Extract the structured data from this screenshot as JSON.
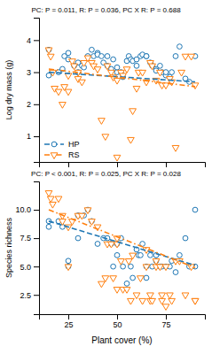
{
  "chart_data": [
    {
      "type": "scatter",
      "annotation": "PC: P = 0.011, R: P = 0.036, PC X R: P = 0.688",
      "ylabel": "Log dry mass (g)",
      "xlim": [
        10,
        95
      ],
      "xticks": [
        25,
        50,
        75
      ],
      "ylim": [
        0.2,
        4.7
      ],
      "yticks": [
        1,
        2,
        3,
        4
      ],
      "tick_labels": "y",
      "legend": "lower left",
      "series": [
        {
          "name": "HP",
          "marker": "circle",
          "line_style": "dashed",
          "x": [
            15,
            15,
            20,
            22,
            23,
            25,
            25,
            28,
            30,
            30,
            32,
            33,
            35,
            37,
            38,
            40,
            40,
            42,
            43,
            45,
            45,
            47,
            48,
            50,
            50,
            52,
            53,
            55,
            56,
            57,
            58,
            60,
            60,
            62,
            63,
            65,
            65,
            67,
            68,
            70,
            70,
            72,
            73,
            75,
            75,
            77,
            78,
            80,
            82,
            85,
            87,
            90
          ],
          "values": [
            3.7,
            2.9,
            3.0,
            3.1,
            3.5,
            3.4,
            3.6,
            3.2,
            3.0,
            3.3,
            3.2,
            3.15,
            3.5,
            3.7,
            3.5,
            3.6,
            3.55,
            3.5,
            3.3,
            3.2,
            3.5,
            3.1,
            3.4,
            3.0,
            3.15,
            3.0,
            2.85,
            3.35,
            3.5,
            3.4,
            3.35,
            3.4,
            3.2,
            3.5,
            3.55,
            3.5,
            3.5,
            3.3,
            3.2,
            3.1,
            3.05,
            3.2,
            3.0,
            2.9,
            3.0,
            2.85,
            3.0,
            3.5,
            3.8,
            2.8,
            2.7,
            3.5
          ],
          "fit_x": [
            15,
            90
          ],
          "fit_values": [
            3.0,
            2.7
          ]
        },
        {
          "name": "RS",
          "marker": "triangle-down",
          "line_style": "dash-dot",
          "x": [
            15,
            16,
            17,
            18,
            20,
            22,
            23,
            25,
            25,
            27,
            28,
            30,
            30,
            32,
            33,
            35,
            37,
            38,
            40,
            42,
            44,
            45,
            47,
            48,
            50,
            50,
            52,
            53,
            55,
            57,
            58,
            60,
            61,
            63,
            65,
            67,
            68,
            70,
            72,
            73,
            75,
            77,
            78,
            80,
            83,
            85,
            88,
            90
          ],
          "values": [
            3.7,
            3.5,
            3.0,
            2.5,
            2.4,
            2.0,
            2.55,
            2.9,
            2.4,
            3.35,
            3.2,
            3.0,
            2.8,
            2.7,
            3.3,
            3.45,
            3.3,
            3.2,
            3.1,
            1.5,
            1.0,
            3.2,
            3.0,
            2.85,
            0.35,
            2.75,
            3.0,
            2.9,
            3.1,
            0.9,
            1.8,
            2.5,
            3.0,
            3.0,
            2.7,
            3.3,
            3.2,
            2.75,
            3.0,
            2.6,
            2.6,
            2.8,
            2.7,
            0.65,
            3.0,
            3.5,
            3.5,
            2.6
          ],
          "fit_x": [
            15,
            90
          ],
          "fit_values": [
            3.1,
            2.55
          ]
        }
      ]
    },
    {
      "type": "scatter",
      "annotation": "PC: P < 0.001, R: P = 0.025, PC X R: P = 0.028",
      "xlabel": "Plant cover (%)",
      "ylabel": "Species richness",
      "xlim": [
        10,
        95
      ],
      "xticks": [
        25,
        50,
        75
      ],
      "ylim": [
        0.8,
        12.5
      ],
      "yticks": [
        2.5,
        {
          "value": 5,
          "label": "5.0"
        },
        7.5,
        {
          "value": 10,
          "label": "10.0"
        }
      ],
      "series": [
        {
          "marker": "circle",
          "line_style": "dashed",
          "x": [
            15,
            15,
            20,
            22,
            25,
            25,
            30,
            30,
            33,
            35,
            37,
            40,
            43,
            45,
            47,
            48,
            50,
            50,
            52,
            53,
            55,
            57,
            58,
            60,
            61,
            62,
            63,
            65,
            65,
            67,
            68,
            70,
            70,
            72,
            73,
            75,
            77,
            78,
            80,
            82,
            85,
            87,
            90,
            90
          ],
          "values": [
            9.0,
            8.5,
            9.0,
            8.5,
            5.0,
            5.5,
            9.5,
            7.5,
            9.5,
            10.0,
            9.0,
            7.0,
            7.5,
            7.5,
            7.0,
            5.0,
            7.0,
            6.0,
            7.5,
            5.0,
            3.5,
            5.0,
            4.0,
            6.5,
            6.0,
            6.0,
            7.0,
            5.0,
            4.0,
            6.0,
            5.0,
            5.5,
            6.0,
            5.0,
            5.0,
            5.0,
            5.0,
            5.5,
            4.5,
            6.0,
            7.5,
            5.0,
            5.0,
            10.0
          ],
          "fit_x": [
            15,
            90
          ],
          "fit_values": [
            9.0,
            5.1
          ]
        },
        {
          "marker": "triangle-down",
          "line_style": "dash-dot",
          "x": [
            15,
            16,
            17,
            20,
            22,
            22,
            25,
            25,
            27,
            30,
            32,
            35,
            37,
            40,
            42,
            44,
            45,
            47,
            48,
            50,
            50,
            50,
            52,
            53,
            55,
            56,
            57,
            58,
            60,
            62,
            63,
            65,
            65,
            67,
            67,
            68,
            70,
            70,
            72,
            73,
            73,
            75,
            75,
            77,
            78,
            80,
            82,
            85,
            88,
            90,
            90
          ],
          "values": [
            11.5,
            11.0,
            10.5,
            11.0,
            9.0,
            9.5,
            8.5,
            5.0,
            9.0,
            9.5,
            9.5,
            10.0,
            9.0,
            8.5,
            3.5,
            4.0,
            7.0,
            7.0,
            4.0,
            3.0,
            7.0,
            7.5,
            5.5,
            3.0,
            3.0,
            5.5,
            2.0,
            6.0,
            2.5,
            4.0,
            2.0,
            6.5,
            5.0,
            2.5,
            2.0,
            2.0,
            5.0,
            5.5,
            5.0,
            2.5,
            2.0,
            1.5,
            5.0,
            2.5,
            2.0,
            5.5,
            5.5,
            2.5,
            5.0,
            2.0,
            2.0
          ],
          "fit_x": [
            15,
            90
          ],
          "fit_values": [
            10.0,
            4.9
          ]
        }
      ]
    }
  ]
}
